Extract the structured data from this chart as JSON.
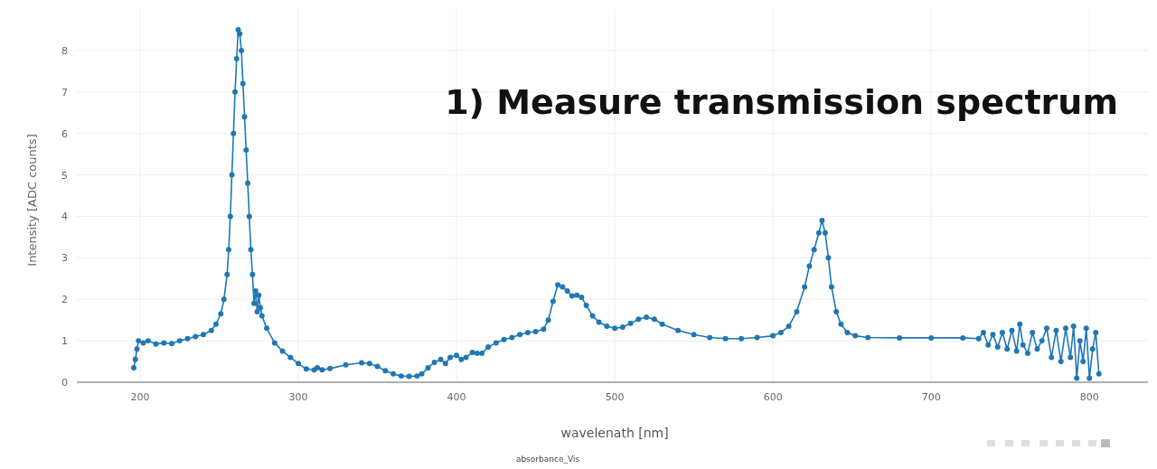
{
  "chart_data": {
    "type": "line",
    "title": "1) Measure transmission spectrum",
    "xlabel": "wavelenath [nm]",
    "ylabel": "Intensity [ADC counts]",
    "annotations": [
      "absorbance_Vis"
    ],
    "xlim": [
      160,
      837
    ],
    "ylim": [
      0,
      9
    ],
    "xticks": [
      200,
      300,
      400,
      500,
      600,
      700,
      800
    ],
    "yticks": [
      0,
      1,
      2,
      3,
      4,
      5,
      6,
      7,
      8
    ],
    "grid": true,
    "marker": "circle",
    "line_style": "solid",
    "series": [
      {
        "color": "#1f77b4",
        "x": [
          196,
          197,
          198,
          199,
          202,
          205,
          210,
          215,
          220,
          225,
          230,
          235,
          240,
          245,
          248,
          251,
          253,
          255,
          256,
          257,
          258,
          259,
          260,
          261,
          262,
          263,
          264,
          265,
          266,
          267,
          268,
          269,
          270,
          271,
          272,
          273,
          274,
          275,
          276,
          277,
          280,
          285,
          290,
          295,
          300,
          305,
          310,
          312,
          315,
          320,
          330,
          340,
          345,
          350,
          355,
          360,
          365,
          370,
          375,
          378,
          382,
          386,
          390,
          393,
          396,
          400,
          403,
          406,
          410,
          413,
          416,
          420,
          425,
          430,
          435,
          440,
          445,
          450,
          455,
          458,
          461,
          464,
          467,
          470,
          473,
          476,
          479,
          482,
          486,
          490,
          495,
          500,
          505,
          510,
          515,
          520,
          525,
          530,
          540,
          550,
          560,
          570,
          580,
          590,
          600,
          605,
          610,
          615,
          620,
          623,
          626,
          629,
          631,
          633,
          635,
          637,
          640,
          643,
          647,
          652,
          660,
          680,
          700,
          720,
          730,
          733,
          736,
          739,
          742,
          745,
          748,
          751,
          754,
          756,
          758,
          761,
          764,
          767,
          770,
          773,
          776,
          779,
          782,
          785,
          788,
          790,
          792,
          794,
          796,
          798,
          800,
          802,
          804,
          806
        ],
        "values": [
          0.35,
          0.55,
          0.8,
          1.0,
          0.95,
          1.0,
          0.92,
          0.95,
          0.93,
          1.0,
          1.05,
          1.1,
          1.15,
          1.25,
          1.4,
          1.65,
          2.0,
          2.6,
          3.2,
          4.0,
          5.0,
          6.0,
          7.0,
          7.8,
          8.5,
          8.4,
          8.0,
          7.2,
          6.4,
          5.6,
          4.8,
          4.0,
          3.2,
          2.6,
          1.9,
          2.2,
          1.7,
          2.1,
          1.8,
          1.6,
          1.3,
          0.95,
          0.75,
          0.6,
          0.45,
          0.32,
          0.3,
          0.35,
          0.3,
          0.33,
          0.42,
          0.47,
          0.45,
          0.38,
          0.28,
          0.2,
          0.15,
          0.14,
          0.15,
          0.2,
          0.35,
          0.48,
          0.55,
          0.45,
          0.6,
          0.65,
          0.55,
          0.6,
          0.72,
          0.7,
          0.7,
          0.85,
          0.95,
          1.03,
          1.08,
          1.15,
          1.2,
          1.22,
          1.28,
          1.5,
          1.95,
          2.35,
          2.3,
          2.2,
          2.08,
          2.1,
          2.05,
          1.85,
          1.6,
          1.45,
          1.35,
          1.3,
          1.33,
          1.42,
          1.52,
          1.57,
          1.52,
          1.4,
          1.25,
          1.15,
          1.08,
          1.05,
          1.05,
          1.08,
          1.12,
          1.2,
          1.35,
          1.7,
          2.3,
          2.8,
          3.2,
          3.6,
          3.9,
          3.6,
          3.0,
          2.3,
          1.7,
          1.4,
          1.2,
          1.12,
          1.08,
          1.07,
          1.07,
          1.07,
          1.05,
          1.2,
          0.9,
          1.15,
          0.85,
          1.2,
          0.8,
          1.25,
          0.75,
          1.4,
          0.9,
          0.7,
          1.2,
          0.8,
          1.0,
          1.3,
          0.6,
          1.25,
          0.5,
          1.3,
          0.6,
          1.35,
          0.1,
          1.0,
          0.5,
          1.3,
          0.1,
          0.8,
          1.2,
          0.2
        ]
      }
    ]
  }
}
